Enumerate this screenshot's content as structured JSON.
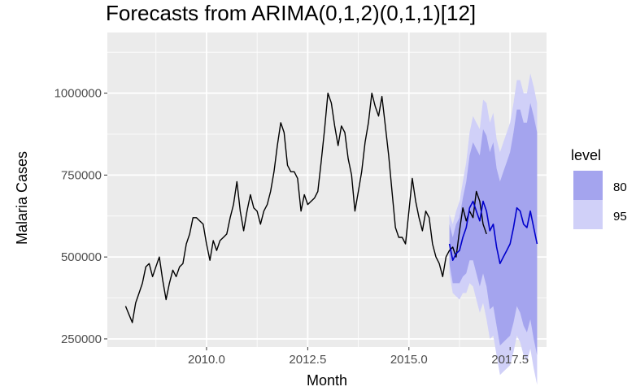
{
  "chart_data": {
    "type": "line",
    "title": "Forecasts from ARIMA(0,1,2)(0,1,1)[12]",
    "xlabel": "Month",
    "ylabel": "Malaria Cases",
    "xlim": [
      2007.55,
      2018.4
    ],
    "ylim": [
      225000,
      1185000
    ],
    "x_ticks": [
      2010.0,
      2012.5,
      2015.0,
      2017.5
    ],
    "x_tick_labels": [
      "2010.0",
      "2012.5",
      "2015.0",
      "2017.5"
    ],
    "y_ticks": [
      250000,
      500000,
      750000,
      1000000
    ],
    "y_tick_labels": [
      "250000",
      "500000",
      "750000",
      "1000000"
    ],
    "grid": true,
    "legend": {
      "title": "level",
      "position": "right",
      "entries": [
        {
          "label": "80",
          "color": "#a4a4ee"
        },
        {
          "label": "95",
          "color": "#d0d0f8"
        }
      ]
    },
    "colors": {
      "panel_bg": "#ebebeb",
      "grid": "#ffffff",
      "history_line": "#000000",
      "forecast_line": "#0000cc",
      "band_80": "#a4a4ee",
      "band_95": "#d0d0f8"
    },
    "history": {
      "start": 2008.0,
      "step": 0.0833333,
      "values": [
        350000,
        325000,
        300000,
        360000,
        390000,
        420000,
        470000,
        480000,
        440000,
        470000,
        500000,
        430000,
        370000,
        420000,
        460000,
        440000,
        470000,
        480000,
        540000,
        570000,
        620000,
        620000,
        610000,
        600000,
        540000,
        490000,
        550000,
        520000,
        550000,
        560000,
        570000,
        620000,
        660000,
        730000,
        640000,
        580000,
        640000,
        690000,
        650000,
        640000,
        600000,
        640000,
        660000,
        700000,
        760000,
        840000,
        910000,
        880000,
        780000,
        760000,
        760000,
        740000,
        640000,
        690000,
        660000,
        670000,
        680000,
        700000,
        790000,
        890000,
        1000000,
        970000,
        900000,
        840000,
        900000,
        880000,
        800000,
        750000,
        640000,
        700000,
        760000,
        850000,
        910000,
        1000000,
        960000,
        930000,
        990000,
        900000,
        810000,
        700000,
        590000,
        560000,
        560000,
        540000,
        640000,
        740000,
        670000,
        620000,
        580000,
        640000,
        620000,
        540000,
        500000,
        480000,
        440000,
        500000,
        520000,
        530000,
        500000,
        580000,
        650000,
        610000,
        640000,
        620000,
        700000,
        670000,
        600000,
        570000
      ]
    },
    "forecast": {
      "start": 2016.0,
      "step": 0.0833333,
      "mean": [
        540000,
        490000,
        510000,
        520000,
        560000,
        590000,
        650000,
        670000,
        640000,
        610000,
        670000,
        640000,
        580000,
        600000,
        530000,
        480000,
        500000,
        520000,
        540000,
        590000,
        650000,
        640000,
        600000,
        590000,
        640000,
        590000,
        540000
      ],
      "lo80": [
        480000,
        420000,
        420000,
        420000,
        440000,
        450000,
        490000,
        490000,
        450000,
        410000,
        450000,
        410000,
        340000,
        350000,
        290000,
        230000,
        240000,
        250000,
        260000,
        300000,
        350000,
        330000,
        290000,
        270000,
        310000,
        250000,
        200000
      ],
      "hi80": [
        600000,
        560000,
        600000,
        620000,
        680000,
        730000,
        810000,
        850000,
        830000,
        810000,
        890000,
        870000,
        820000,
        850000,
        770000,
        730000,
        760000,
        790000,
        820000,
        880000,
        950000,
        950000,
        910000,
        910000,
        970000,
        930000,
        880000
      ],
      "lo95": [
        450000,
        390000,
        380000,
        370000,
        390000,
        390000,
        420000,
        410000,
        370000,
        330000,
        360000,
        310000,
        250000,
        260000,
        200000,
        140000,
        150000,
        160000,
        170000,
        210000,
        260000,
        240000,
        200000,
        180000,
        220000,
        160000,
        110000
      ],
      "hi95": [
        630000,
        600000,
        640000,
        670000,
        730000,
        790000,
        880000,
        930000,
        910000,
        890000,
        980000,
        970000,
        910000,
        940000,
        860000,
        820000,
        850000,
        880000,
        910000,
        970000,
        1040000,
        1040000,
        1000000,
        1000000,
        1060000,
        1020000,
        970000
      ]
    }
  }
}
